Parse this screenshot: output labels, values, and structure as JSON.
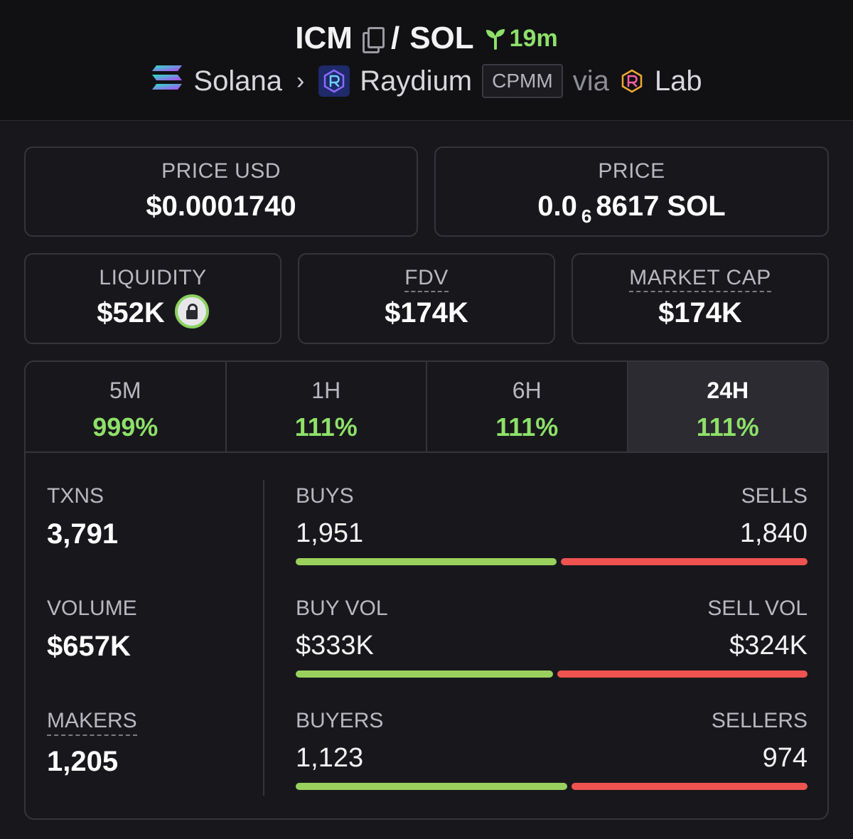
{
  "header": {
    "base_token": "ICM",
    "separator": "/",
    "quote_token": "SOL",
    "age": "19m",
    "chain": "Solana",
    "dex": "Raydium",
    "pool_type": "CPMM",
    "via": "via",
    "launchpad": "Lab"
  },
  "price_usd": {
    "label": "PRICE USD",
    "value": "$0.0001740"
  },
  "price_native": {
    "label": "PRICE",
    "prefix": "0.0",
    "zeros": "6",
    "digits": "8617",
    "unit": "SOL"
  },
  "liquidity": {
    "label": "LIQUIDITY",
    "value": "$52K"
  },
  "fdv": {
    "label": "FDV",
    "value": "$174K"
  },
  "market_cap": {
    "label": "MARKET CAP",
    "value": "$174K"
  },
  "tabs": [
    {
      "label": "5M",
      "change": "999%"
    },
    {
      "label": "1H",
      "change": "111%"
    },
    {
      "label": "6H",
      "change": "111%"
    },
    {
      "label": "24H",
      "change": "111%"
    }
  ],
  "metrics": {
    "txns": {
      "label": "TXNS",
      "value": "3,791"
    },
    "volume": {
      "label": "VOLUME",
      "value": "$657K"
    },
    "makers": {
      "label": "MAKERS",
      "value": "1,205"
    }
  },
  "splits": {
    "txns": {
      "left_label": "BUYS",
      "left_value": "1,951",
      "right_label": "SELLS",
      "right_value": "1,840",
      "buy_fraction": 0.5146
    },
    "volume": {
      "left_label": "BUY VOL",
      "left_value": "$333K",
      "right_label": "SELL VOL",
      "right_value": "$324K",
      "buy_fraction": 0.5068
    },
    "makers": {
      "left_label": "BUYERS",
      "left_value": "1,123",
      "right_label": "SELLERS",
      "right_value": "974",
      "buy_fraction": 0.5355
    }
  },
  "colors": {
    "positive": "#8ee06a",
    "buy_bar": "#9ad15d",
    "sell_bar": "#ef5350"
  }
}
